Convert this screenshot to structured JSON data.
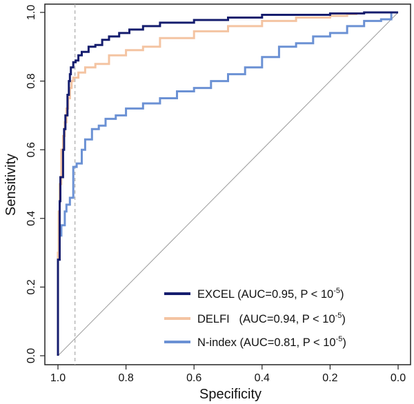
{
  "chart_data": {
    "type": "line",
    "title": "",
    "xlabel": "Specificity",
    "ylabel": "Sensitivity",
    "xlim": [
      1.0,
      0.0
    ],
    "ylim": [
      0.0,
      1.0
    ],
    "x_ticks": [
      "1.0",
      "0.8",
      "0.6",
      "0.4",
      "0.2",
      "0.0"
    ],
    "y_ticks": [
      "0.0",
      "0.2",
      "0.4",
      "0.6",
      "0.8",
      "1.0"
    ],
    "reference_line": {
      "from": [
        1.0,
        0.0
      ],
      "to": [
        0.0,
        1.0
      ],
      "color": "#9a9a9a"
    },
    "threshold_line": {
      "specificity": 0.95,
      "color": "#aaaaaa"
    },
    "legend_position": "bottom-right",
    "series": [
      {
        "name": "EXCEL",
        "label": "EXCEL (AUC=0.95, P < 10",
        "sup": "-5",
        "close": ")",
        "color": "#151d6e",
        "points": [
          [
            1.0,
            0.0
          ],
          [
            0.995,
            0.28
          ],
          [
            0.993,
            0.45
          ],
          [
            0.985,
            0.52
          ],
          [
            0.982,
            0.6
          ],
          [
            0.978,
            0.66
          ],
          [
            0.972,
            0.7
          ],
          [
            0.968,
            0.76
          ],
          [
            0.965,
            0.8
          ],
          [
            0.962,
            0.82
          ],
          [
            0.955,
            0.84
          ],
          [
            0.948,
            0.855
          ],
          [
            0.94,
            0.86
          ],
          [
            0.93,
            0.875
          ],
          [
            0.91,
            0.885
          ],
          [
            0.89,
            0.9
          ],
          [
            0.87,
            0.905
          ],
          [
            0.85,
            0.92
          ],
          [
            0.82,
            0.93
          ],
          [
            0.79,
            0.94
          ],
          [
            0.75,
            0.95
          ],
          [
            0.7,
            0.96
          ],
          [
            0.6,
            0.97
          ],
          [
            0.5,
            0.978
          ],
          [
            0.4,
            0.985
          ],
          [
            0.2,
            0.993
          ],
          [
            0.1,
            0.997
          ],
          [
            0.0,
            1.0
          ]
        ]
      },
      {
        "name": "DELFI",
        "label": "DELFI   (AUC=0.94, P < 10",
        "sup": "-5",
        "close": ")",
        "color": "#f4c4a2",
        "points": [
          [
            1.0,
            0.0
          ],
          [
            0.998,
            0.3
          ],
          [
            0.995,
            0.42
          ],
          [
            0.99,
            0.5
          ],
          [
            0.985,
            0.6
          ],
          [
            0.98,
            0.64
          ],
          [
            0.975,
            0.68
          ],
          [
            0.97,
            0.72
          ],
          [
            0.965,
            0.75
          ],
          [
            0.96,
            0.78
          ],
          [
            0.955,
            0.8
          ],
          [
            0.94,
            0.81
          ],
          [
            0.92,
            0.825
          ],
          [
            0.89,
            0.84
          ],
          [
            0.85,
            0.85
          ],
          [
            0.8,
            0.875
          ],
          [
            0.75,
            0.89
          ],
          [
            0.7,
            0.9
          ],
          [
            0.6,
            0.925
          ],
          [
            0.5,
            0.945
          ],
          [
            0.4,
            0.96
          ],
          [
            0.3,
            0.975
          ],
          [
            0.2,
            0.985
          ],
          [
            0.15,
            0.99
          ],
          [
            0.12,
            0.995
          ]
        ]
      },
      {
        "name": "N-index",
        "label": "N-index (AUC=0.81, P < 10",
        "sup": "-5",
        "close": ")",
        "color": "#6b91d4",
        "points": [
          [
            1.0,
            0.0
          ],
          [
            0.997,
            0.28
          ],
          [
            0.99,
            0.35
          ],
          [
            0.98,
            0.38
          ],
          [
            0.975,
            0.42
          ],
          [
            0.965,
            0.44
          ],
          [
            0.955,
            0.46
          ],
          [
            0.945,
            0.55
          ],
          [
            0.93,
            0.56
          ],
          [
            0.92,
            0.6
          ],
          [
            0.9,
            0.63
          ],
          [
            0.88,
            0.66
          ],
          [
            0.86,
            0.67
          ],
          [
            0.83,
            0.69
          ],
          [
            0.8,
            0.7
          ],
          [
            0.75,
            0.72
          ],
          [
            0.7,
            0.735
          ],
          [
            0.65,
            0.75
          ],
          [
            0.6,
            0.77
          ],
          [
            0.55,
            0.78
          ],
          [
            0.5,
            0.8
          ],
          [
            0.45,
            0.82
          ],
          [
            0.4,
            0.84
          ],
          [
            0.35,
            0.87
          ],
          [
            0.3,
            0.9
          ],
          [
            0.25,
            0.91
          ],
          [
            0.2,
            0.93
          ],
          [
            0.15,
            0.94
          ],
          [
            0.1,
            0.96
          ],
          [
            0.05,
            0.975
          ],
          [
            0.02,
            0.98
          ],
          [
            0.0,
            1.0
          ]
        ]
      }
    ]
  }
}
